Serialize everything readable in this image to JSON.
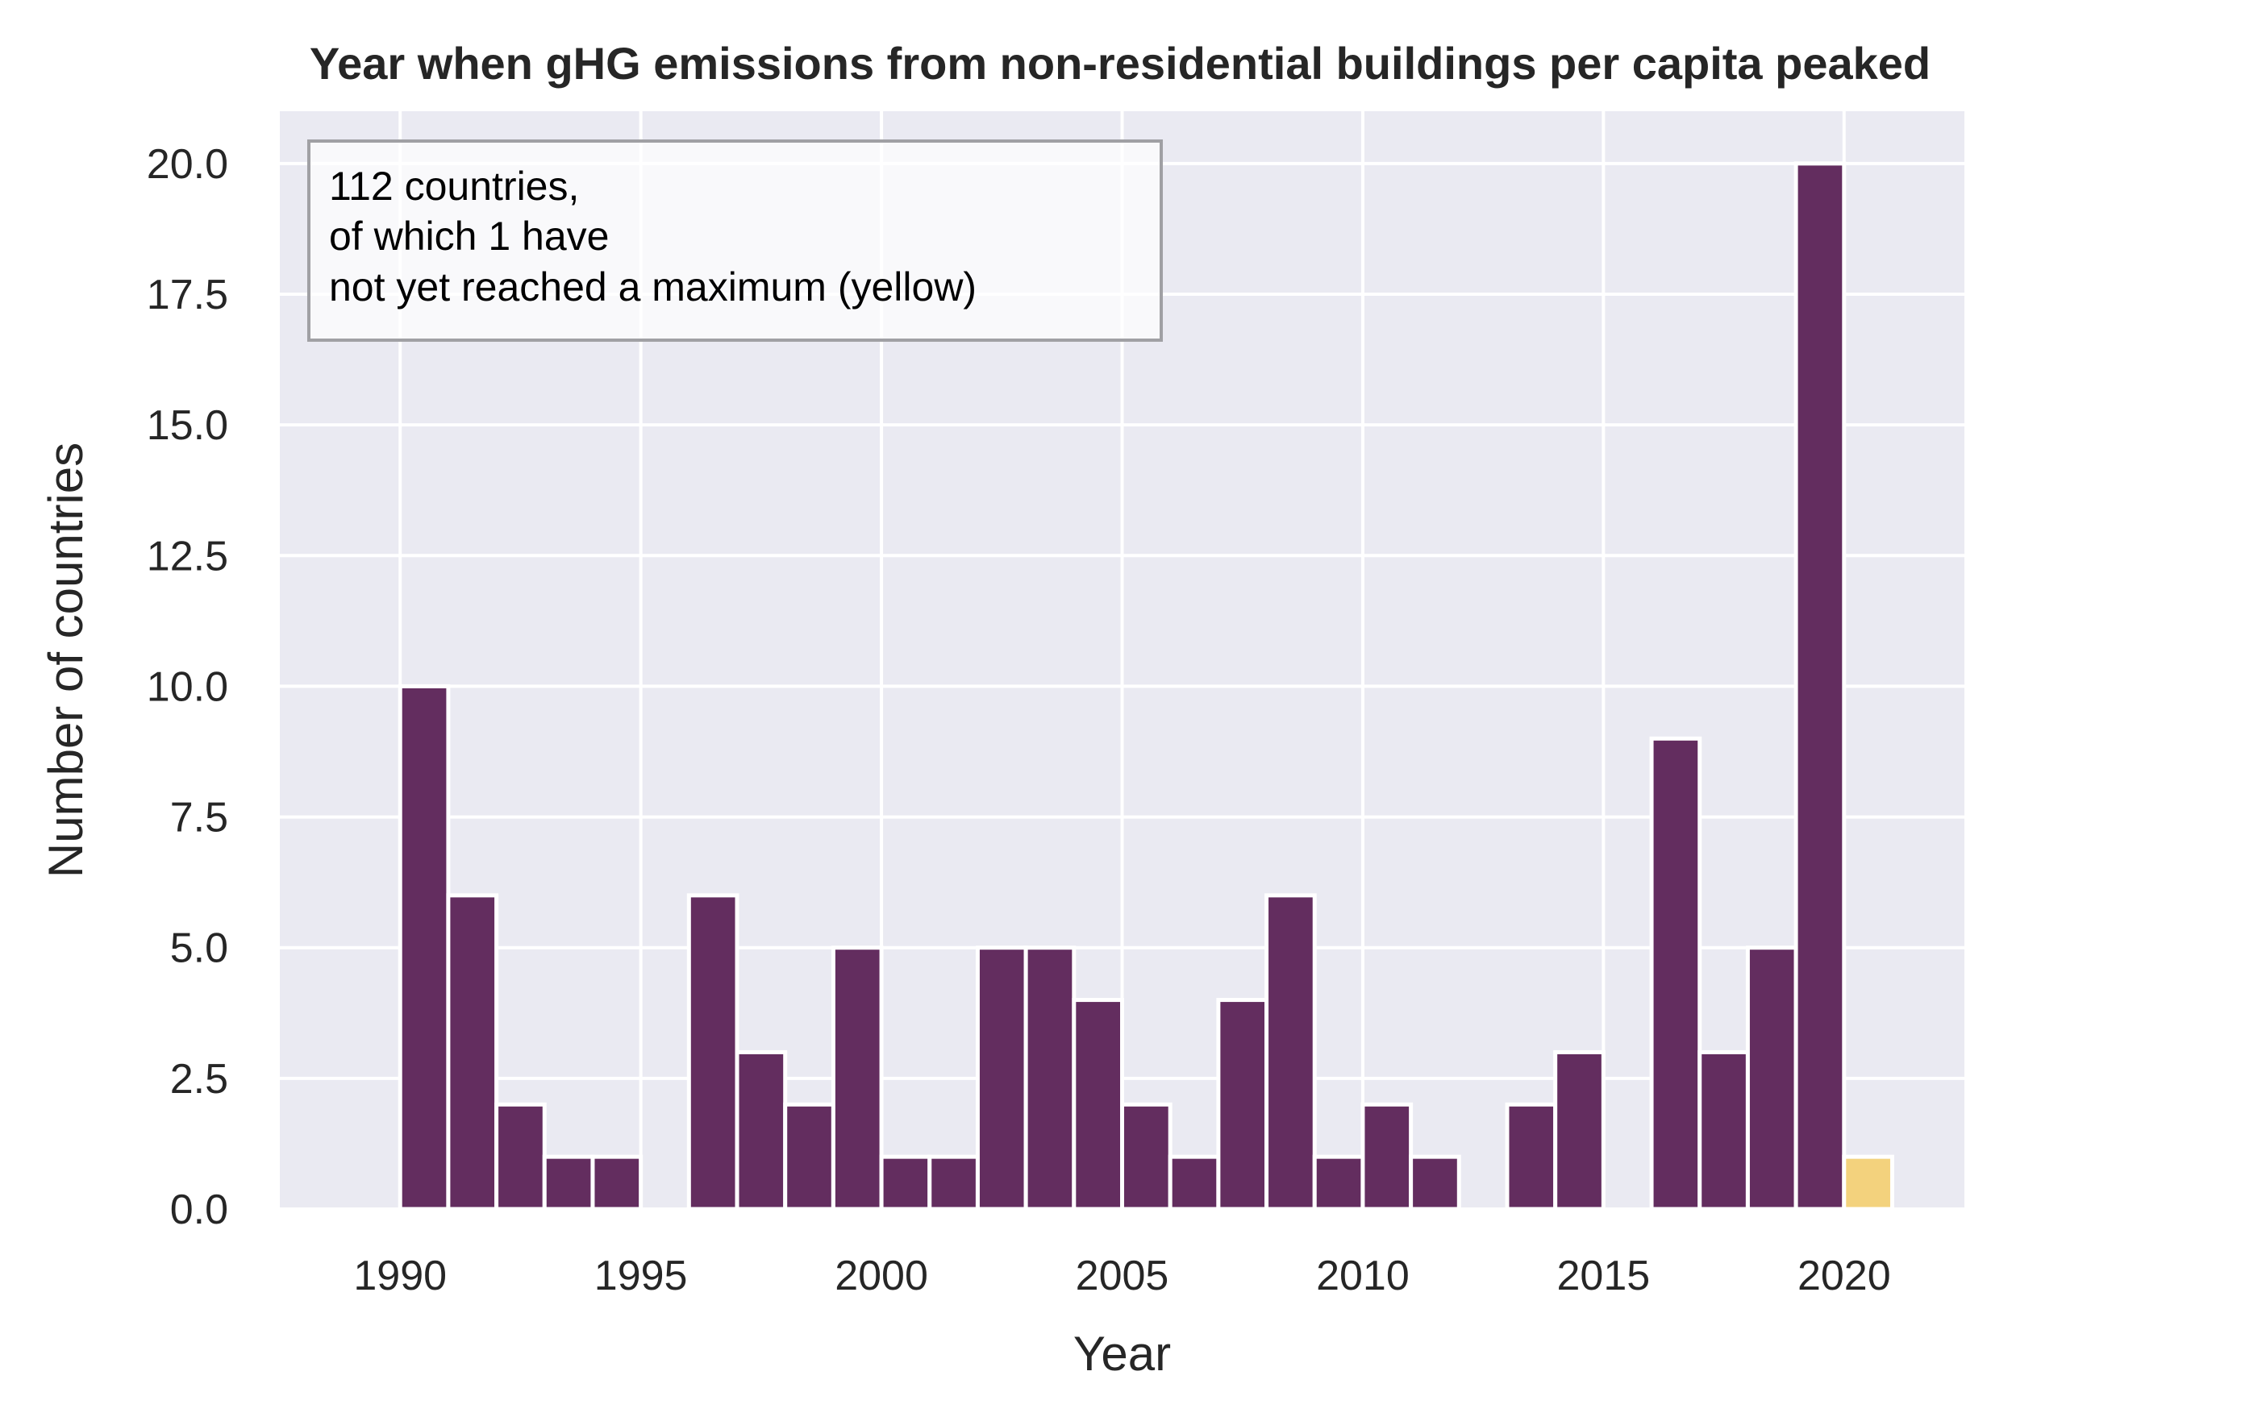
{
  "chart_data": {
    "type": "bar",
    "title": "Year when gHG emissions from non-residential buildings per capita peaked",
    "xlabel": "Year",
    "ylabel": "Number of countries",
    "xlim": [
      1987.5,
      2022.5
    ],
    "ylim": [
      0,
      21
    ],
    "xticks": [
      1990,
      1995,
      2000,
      2005,
      2010,
      2015,
      2020
    ],
    "yticks": [
      0.0,
      2.5,
      5.0,
      7.5,
      10.0,
      12.5,
      15.0,
      17.5,
      20.0
    ],
    "ytick_labels": [
      "0.0",
      "2.5",
      "5.0",
      "7.5",
      "10.0",
      "12.5",
      "15.0",
      "17.5",
      "20.0"
    ],
    "grid": true,
    "annotation": {
      "lines": [
        "112 countries,",
        "of which 1 have",
        "not yet reached a maximum (yellow)"
      ],
      "placement": "top-left"
    },
    "colors": {
      "peaked": "#632d5f",
      "not_peaked": "#f3d27d",
      "background": "#eaeaf2",
      "grid": "#ffffff"
    },
    "series": [
      {
        "status": "peaked",
        "years": [
          1990,
          1991,
          1992,
          1993,
          1994,
          1996,
          1997,
          1998,
          1999,
          2000,
          2001,
          2002,
          2003,
          2004,
          2005,
          2006,
          2007,
          2008,
          2009,
          2010,
          2011,
          2013,
          2014,
          2016,
          2017,
          2018,
          2019
        ],
        "values": [
          10,
          6,
          2,
          1,
          1,
          6,
          3,
          2,
          5,
          1,
          1,
          5,
          5,
          4,
          2,
          1,
          4,
          6,
          1,
          2,
          1,
          2,
          3,
          9,
          3,
          5,
          20
        ]
      },
      {
        "status": "not_peaked",
        "years": [
          2020
        ],
        "values": [
          1
        ]
      }
    ]
  }
}
